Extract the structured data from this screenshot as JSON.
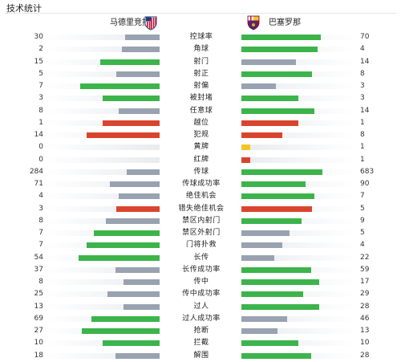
{
  "header": {
    "title": "技术统计"
  },
  "teams": {
    "home": {
      "name": "马德里竞技",
      "logo_icon": "atletico-madrid-crest-icon"
    },
    "away": {
      "name": "巴塞罗那",
      "logo_icon": "fc-barcelona-crest-icon"
    }
  },
  "colors": {
    "win": "#3cb44b",
    "lose": "#98a2b0",
    "foul": "#d9442e",
    "yellow": "#f3c623",
    "track": "#e8ebef"
  },
  "stats": [
    {
      "name": "控球率",
      "home": "30",
      "away": "70",
      "home_pct": 0.3,
      "away_pct": 0.7
    },
    {
      "name": "角球",
      "home": "2",
      "away": "4",
      "home_pct": 0.33,
      "away_pct": 0.67
    },
    {
      "name": "射门",
      "home": "15",
      "away": "14",
      "home_pct": 0.52,
      "away_pct": 0.48
    },
    {
      "name": "射正",
      "home": "5",
      "away": "8",
      "home_pct": 0.38,
      "away_pct": 0.62
    },
    {
      "name": "射偏",
      "home": "7",
      "away": "3",
      "home_pct": 0.7,
      "away_pct": 0.3
    },
    {
      "name": "被封堵",
      "home": "3",
      "away": "3",
      "home_pct": 0.5,
      "away_pct": 0.5
    },
    {
      "name": "任意球",
      "home": "8",
      "away": "14",
      "home_pct": 0.36,
      "away_pct": 0.64
    },
    {
      "name": "越位",
      "home": "1",
      "away": "1",
      "home_pct": 0.5,
      "away_pct": 0.5,
      "type": "foul"
    },
    {
      "name": "犯规",
      "home": "14",
      "away": "8",
      "home_pct": 0.64,
      "away_pct": 0.36,
      "type": "foul"
    },
    {
      "name": "黄牌",
      "home": "0",
      "away": "1",
      "home_pct": 0,
      "away_pct": 0.08,
      "type": "yellow"
    },
    {
      "name": "红牌",
      "home": "0",
      "away": "1",
      "home_pct": 0,
      "away_pct": 0.08,
      "type": "foul"
    },
    {
      "name": "传球",
      "home": "284",
      "away": "683",
      "home_pct": 0.29,
      "away_pct": 0.71
    },
    {
      "name": "传球成功率",
      "home": "71",
      "away": "90",
      "home_pct": 0.44,
      "away_pct": 0.56
    },
    {
      "name": "绝佳机会",
      "home": "4",
      "away": "7",
      "home_pct": 0.36,
      "away_pct": 0.64
    },
    {
      "name": "错失绝佳机会",
      "home": "3",
      "away": "5",
      "home_pct": 0.38,
      "away_pct": 0.62,
      "type": "foul"
    },
    {
      "name": "禁区内射门",
      "home": "8",
      "away": "9",
      "home_pct": 0.47,
      "away_pct": 0.53
    },
    {
      "name": "禁区外射门",
      "home": "7",
      "away": "5",
      "home_pct": 0.58,
      "away_pct": 0.42
    },
    {
      "name": "门将扑救",
      "home": "7",
      "away": "4",
      "home_pct": 0.64,
      "away_pct": 0.36
    },
    {
      "name": "长传",
      "home": "54",
      "away": "22",
      "home_pct": 0.71,
      "away_pct": 0.29
    },
    {
      "name": "长传成功率",
      "home": "37",
      "away": "59",
      "home_pct": 0.39,
      "away_pct": 0.61
    },
    {
      "name": "传中",
      "home": "8",
      "away": "17",
      "home_pct": 0.32,
      "away_pct": 0.68
    },
    {
      "name": "传中成功率",
      "home": "25",
      "away": "29",
      "home_pct": 0.46,
      "away_pct": 0.54
    },
    {
      "name": "过人",
      "home": "13",
      "away": "28",
      "home_pct": 0.32,
      "away_pct": 0.68
    },
    {
      "name": "过人成功率",
      "home": "69",
      "away": "46",
      "home_pct": 0.6,
      "away_pct": 0.4
    },
    {
      "name": "抢断",
      "home": "27",
      "away": "13",
      "home_pct": 0.68,
      "away_pct": 0.32
    },
    {
      "name": "拦截",
      "home": "10",
      "away": "10",
      "home_pct": 0.5,
      "away_pct": 0.5
    },
    {
      "name": "解围",
      "home": "18",
      "away": "28",
      "home_pct": 0.39,
      "away_pct": 0.61
    }
  ]
}
